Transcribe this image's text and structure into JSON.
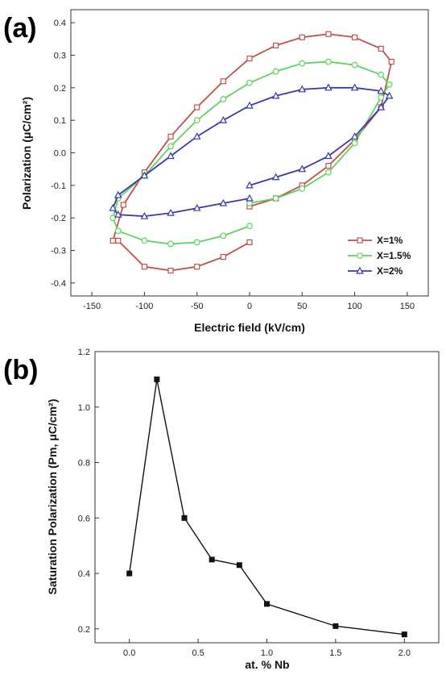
{
  "chart_data": [
    {
      "panel_label": "(a)",
      "type": "line",
      "xlabel": "Electric field (kV/cm)",
      "ylabel": "Polarization (μC/cm²)",
      "xlim": [
        -170,
        170
      ],
      "ylim": [
        -0.44,
        0.44
      ],
      "xticks": [
        -150,
        -100,
        -50,
        0,
        50,
        100,
        150
      ],
      "yticks": [
        -0.4,
        -0.3,
        -0.2,
        -0.1,
        0.0,
        0.1,
        0.2,
        0.3,
        0.4
      ],
      "legend_position": "bottom-right",
      "series": [
        {
          "name": "X=1%",
          "color": "#c0504d",
          "marker": "square",
          "x": [
            0,
            -25,
            -50,
            -75,
            -100,
            -125,
            -130,
            -120,
            -100,
            -75,
            -50,
            -25,
            0,
            25,
            50,
            75,
            100,
            125,
            135,
            125,
            100,
            75,
            50,
            25,
            0
          ],
          "y": [
            -0.275,
            -0.32,
            -0.35,
            -0.362,
            -0.35,
            -0.27,
            -0.27,
            -0.16,
            -0.06,
            0.05,
            0.14,
            0.22,
            0.29,
            0.33,
            0.355,
            0.365,
            0.355,
            0.32,
            0.28,
            0.14,
            0.04,
            -0.04,
            -0.1,
            -0.14,
            -0.165
          ]
        },
        {
          "name": "X=1.5%",
          "color": "#5fd35f",
          "marker": "circle",
          "x": [
            0,
            -25,
            -50,
            -75,
            -100,
            -125,
            -130,
            -125,
            -100,
            -75,
            -50,
            -25,
            0,
            25,
            50,
            75,
            100,
            125,
            133,
            125,
            100,
            75,
            50,
            25,
            0
          ],
          "y": [
            -0.225,
            -0.255,
            -0.275,
            -0.28,
            -0.27,
            -0.24,
            -0.2,
            -0.14,
            -0.07,
            0.02,
            0.1,
            0.165,
            0.215,
            0.25,
            0.275,
            0.28,
            0.27,
            0.24,
            0.21,
            0.17,
            0.03,
            -0.06,
            -0.11,
            -0.14,
            -0.155
          ]
        },
        {
          "name": "X=2%",
          "color": "#3a3aa8",
          "marker": "triangle",
          "x": [
            0,
            -25,
            -50,
            -75,
            -100,
            -125,
            -130,
            -125,
            -100,
            -75,
            -50,
            -25,
            0,
            25,
            50,
            75,
            100,
            125,
            133,
            125,
            100,
            75,
            50,
            25,
            0
          ],
          "y": [
            -0.14,
            -0.155,
            -0.17,
            -0.185,
            -0.195,
            -0.19,
            -0.17,
            -0.13,
            -0.07,
            -0.01,
            0.05,
            0.1,
            0.145,
            0.175,
            0.195,
            0.2,
            0.2,
            0.19,
            0.175,
            0.14,
            0.05,
            -0.01,
            -0.05,
            -0.075,
            -0.1
          ]
        }
      ]
    },
    {
      "panel_label": "(b)",
      "type": "line",
      "xlabel": "at. % Nb",
      "ylabel": "Saturation Polarization (Pm, μC/cm²)",
      "xlim": [
        -0.25,
        2.25
      ],
      "ylim": [
        0.15,
        1.2
      ],
      "xticks": [
        "0.0",
        "0.5",
        "1.0",
        "1.5",
        "2.0"
      ],
      "yticks": [
        "0.2",
        "0.4",
        "0.6",
        "0.8",
        "1.0",
        "1.2"
      ],
      "marker": "square",
      "color": "#111111",
      "x": [
        0.0,
        0.2,
        0.4,
        0.6,
        0.8,
        1.0,
        1.5,
        2.0
      ],
      "y": [
        0.4,
        1.1,
        0.6,
        0.45,
        0.43,
        0.29,
        0.21,
        0.18
      ]
    }
  ]
}
